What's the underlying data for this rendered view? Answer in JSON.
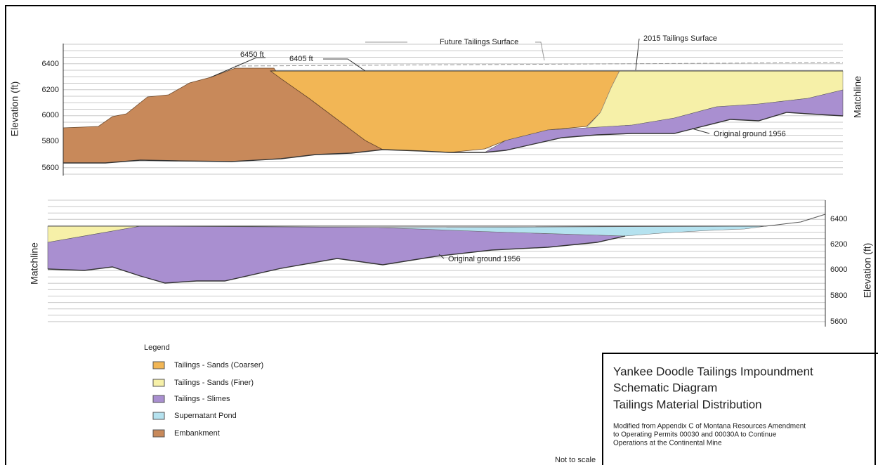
{
  "top_panel": {
    "y_axis_label": "Elevation (ft)",
    "right_label": "Matchline",
    "yticks": [
      "6400",
      "6200",
      "6000",
      "5800",
      "5600"
    ],
    "annotations": {
      "future": "Future Tailings Surface",
      "current": "2015 Tailings Surface",
      "crest_high": "6450 ft",
      "crest_low": "6405 ft",
      "ground": "Original ground 1956"
    }
  },
  "bottom_panel": {
    "y_axis_label": "Elevation (ft)",
    "left_label": "Matchline",
    "yticks": [
      "6400",
      "6200",
      "6000",
      "5800",
      "5600"
    ],
    "annotations": {
      "ground": "Original ground 1956"
    }
  },
  "legend": {
    "title": "Legend",
    "items": [
      "Tailings - Sands (Coarser)",
      "Tailings - Sands (Finer)",
      "Tailings - Slimes",
      "Supernatant Pond",
      "Embankment"
    ]
  },
  "title_block": {
    "lines": [
      "Yankee Doodle Tailings Impoundment",
      "Schematic Diagram",
      "Tailings Material Distribution"
    ],
    "note": [
      "Modified from Appendix C of Montana Resources Amendment",
      "to Operating Permits 00030 and 00030A to Continue",
      "Operations at the Continental Mine"
    ]
  },
  "footer": "Not to scale"
}
